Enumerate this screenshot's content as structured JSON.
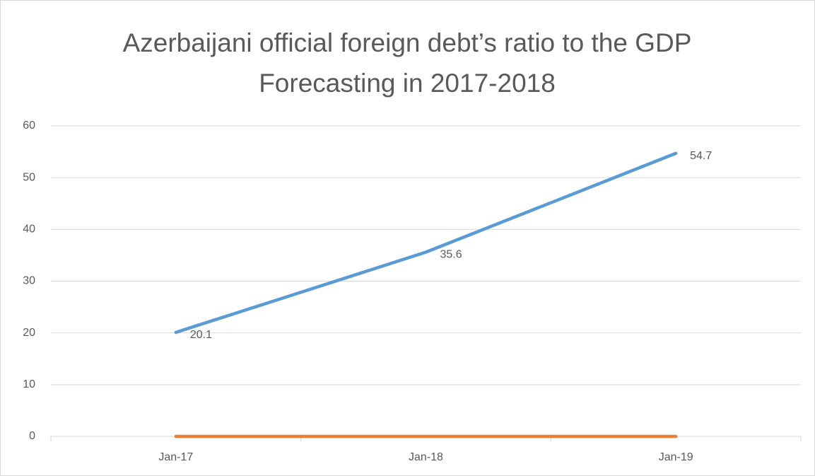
{
  "chart_data": {
    "type": "line",
    "title": "Azerbaijani official foreign debt’s ratio to the GDP Forecasting in 2017-2018",
    "categories": [
      "Jan-17",
      "Jan-18",
      "Jan-19"
    ],
    "series": [
      {
        "color": "#5b9bd5",
        "values": [
          20.1,
          35.6,
          54.7
        ]
      },
      {
        "color": "#ed7d31",
        "values": [
          0,
          0,
          0
        ]
      }
    ],
    "data_labels_series": [
      0
    ],
    "ylim": [
      0,
      60
    ],
    "yticks": [
      0,
      10,
      20,
      30,
      40,
      50,
      60
    ],
    "grid": true
  }
}
